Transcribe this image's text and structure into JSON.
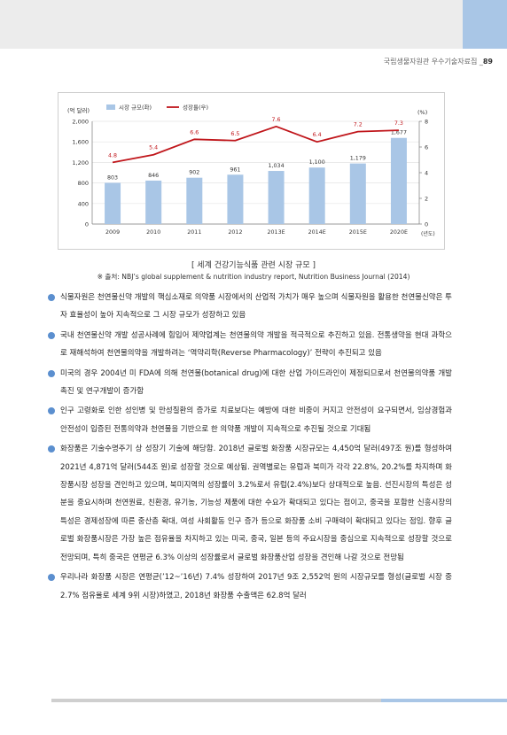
{
  "header": {
    "text": "국립생물자원관 우수기술자료집 _",
    "page": "89"
  },
  "chart_data": {
    "type": "bar",
    "categories": [
      "2009",
      "2010",
      "2011",
      "2012",
      "2013E",
      "2014E",
      "2015E",
      "2020E"
    ],
    "series": [
      {
        "name": "시장 규모(좌)",
        "type": "bar",
        "axis": "left",
        "color": "#a9c6e6",
        "values": [
          803,
          846,
          902,
          961,
          1034,
          1100,
          1179,
          1677
        ],
        "labels": [
          "803",
          "846",
          "902",
          "961",
          "1,034",
          "1,100",
          "1,179",
          "1,677"
        ]
      },
      {
        "name": "성장률(우)",
        "type": "line",
        "axis": "right",
        "color": "#c0161b",
        "values": [
          4.8,
          5.4,
          6.6,
          6.5,
          7.6,
          6.4,
          7.2,
          7.3
        ],
        "labels": [
          "4.8",
          "5.4",
          "6.6",
          "6.5",
          "7.6",
          "6.4",
          "7.2",
          "7.3"
        ]
      }
    ],
    "y_left": {
      "unit": "(억 달러)",
      "range": [
        0,
        2000
      ],
      "ticks": [
        "0",
        "400",
        "800",
        "1,200",
        "1,600",
        "2,000"
      ]
    },
    "y_right": {
      "unit": "(%)",
      "range": [
        0,
        8
      ],
      "ticks": [
        "0",
        "2",
        "4",
        "6",
        "8"
      ]
    },
    "x_unit": "(년도)",
    "legend_position": "top-left"
  },
  "caption": "[ 세계 건강기능식품 관련 시장 규모 ]",
  "source": "※ 출처: NBJ’s global supplement & nutrition industry report, Nutrition Business Journal (2014)",
  "bullets": [
    "식물자원은 천연물신약 개발의 핵심소재로 의약품 시장에서의 산업적 가치가 매우 높으며 식물자원을 활용한 천연물신약은 투자 효율성이 높아 지속적으로 그 시장 규모가 성장하고 있음",
    "국내 천연물신약 개발 성공사례에 힘입어 제약업계는 천연물의약 개발을 적극적으로 추진하고 있음. 전통생약을 현대 과학으로 재해석하여 천연물의약을 개발하려는 ‘역약리학(Reverse Pharmacology)’ 전략이 추진되고 있음",
    "미국의 경우 2004년 미 FDA에 의해 천연물(botanical drug)에 대한 산업 가이드라인이 제정되므로서 천연물의약품 개발 촉진 및 연구개발이 증가함",
    "인구 고령화로 인한 성인병 및 만성질환의 증가로 치료보다는 예방에 대한 비중이 커지고 안전성이 요구되면서, 임상경험과 안전성이 입증된 전통의약과 천연물을 기반으로 한 의약품 개발이 지속적으로 추진될 것으로 기대됨",
    "화장품은 기술수명주기 상 성장기 기술에 해당함. 2018년 글로벌 화장품 시장규모는 4,450억 달러(497조 원)를 형성하여 2021년 4,871억 달러(544조 원)로 성장할 것으로 예상됨. 권역별로는 유럽과 북미가 각각 22.8%, 20.2%를 차지하며 화장품시장 성장을 견인하고 있으며, 북미지역의 성장률이 3.2%로서 유럽(2.4%)보다 상대적으로 높음. 선진시장의 특성은 성분을 중요시하며 천연원료, 친환경, 유기농, 기능성 제품에 대한 수요가 확대되고 있다는 점이고, 중국을 포함한 신흥시장의 특성은 경제성장에 따른 중산층 확대, 여성 사회활동 인구 증가 등으로 화장품 소비 구매력이 확대되고 있다는 점임. 향후 글로벌 화장품시장은 가장 높은 점유율을 차지하고 있는 미국, 중국, 일본 등의 주요시장을 중심으로 지속적으로 성장할 것으로 전망되며, 특히 중국은 연평균 6.3% 이상의 성장률로서 글로벌 화장품산업 성장을 견인해 나갈 것으로 전망됨",
    "우리나라 화장품 시장은 연평균(’12~’16년) 7.4% 성장하여 2017년 9조 2,552억 원의 시장규모를 형성(글로벌 시장 중 2.7% 점유율로 세계 9위 시장)하였고, 2018년 화장품 수출액은 62.8억 달러"
  ]
}
